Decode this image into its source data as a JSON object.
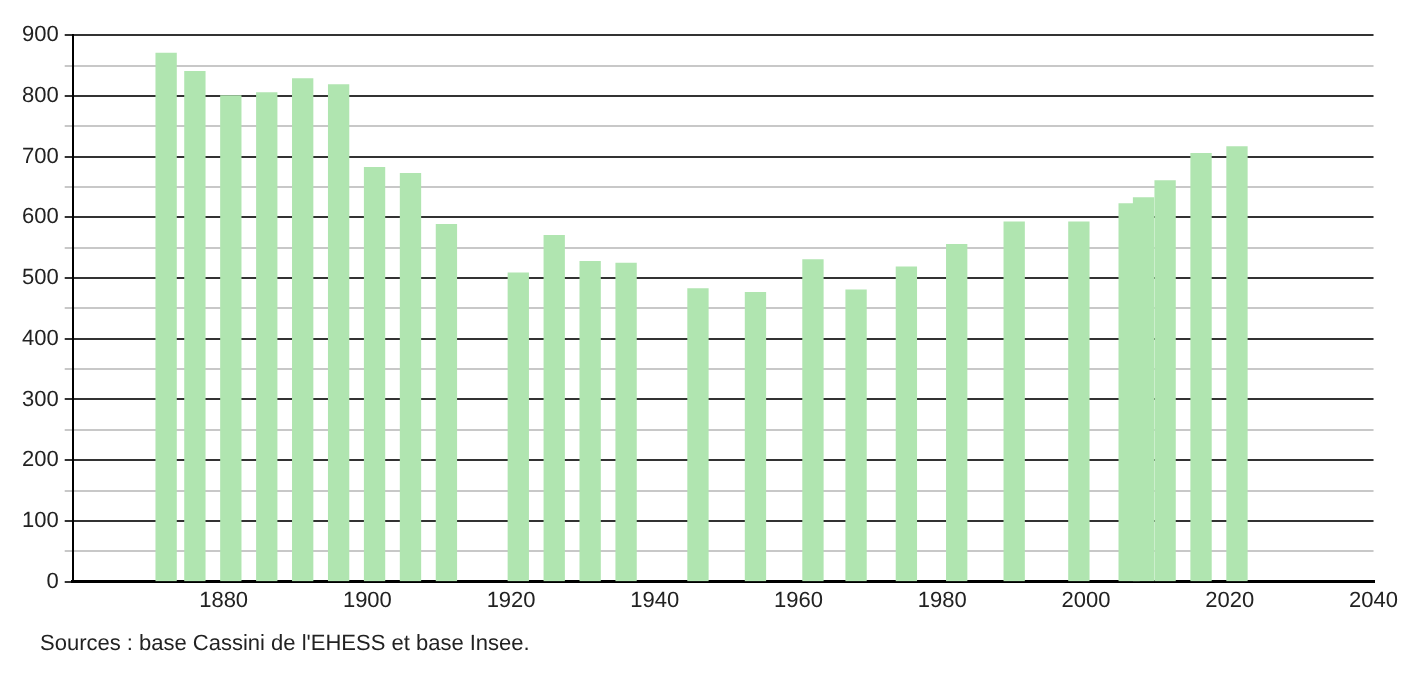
{
  "chart_data": {
    "type": "bar",
    "x": [
      1872,
      1876,
      1881,
      1886,
      1891,
      1896,
      1901,
      1906,
      1911,
      1921,
      1926,
      1931,
      1936,
      1946,
      1954,
      1962,
      1968,
      1975,
      1982,
      1990,
      1999,
      2006,
      2008,
      2011,
      2016,
      2021
    ],
    "values": [
      870,
      840,
      800,
      805,
      828,
      818,
      682,
      672,
      588,
      508,
      570,
      527,
      524,
      482,
      476,
      530,
      480,
      518,
      555,
      592,
      592,
      622,
      632,
      660,
      705,
      716
    ],
    "color": "#b0e5b0",
    "xlim": [
      1859,
      2040
    ],
    "xticks": [
      1880,
      1900,
      1920,
      1940,
      1960,
      1980,
      2000,
      2020,
      2040
    ],
    "ylim": [
      0,
      900
    ],
    "yticks": [
      0,
      {
        "value": 50,
        "label": null
      },
      100,
      {
        "value": 150,
        "label": null
      },
      200,
      {
        "value": 250,
        "label": null
      },
      300,
      {
        "value": 350,
        "label": null
      },
      400,
      {
        "value": 450,
        "label": null
      },
      500,
      {
        "value": 550,
        "label": null
      },
      600,
      {
        "value": 650,
        "label": null
      },
      700,
      {
        "value": 750,
        "label": null
      },
      800,
      {
        "value": 850,
        "label": null
      },
      900
    ],
    "grid": "y",
    "annotations": [
      "Sources : base Cassini de l'EHESS et base Insee."
    ]
  }
}
